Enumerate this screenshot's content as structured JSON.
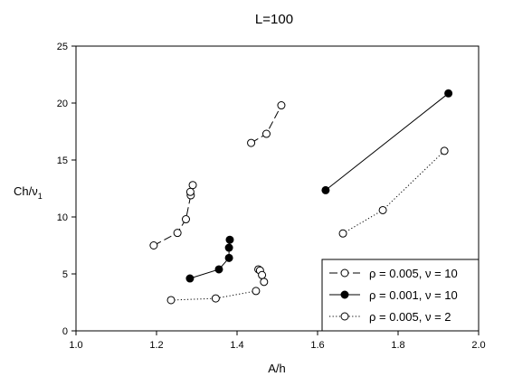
{
  "chart_data": {
    "type": "scatter",
    "title": "L=100",
    "xlabel": "A/h",
    "ylabel_main": "Ch/ν",
    "ylabel_sub": "1",
    "xlim": [
      1.0,
      2.0
    ],
    "ylim": [
      0,
      25
    ],
    "xticks": [
      1.0,
      1.2,
      1.4,
      1.6,
      1.8,
      2.0
    ],
    "xtick_labels": [
      "1.0",
      "1.2",
      "1.4",
      "1.6",
      "1.8",
      "2.0"
    ],
    "yticks": [
      0,
      5,
      10,
      15,
      20,
      25
    ],
    "ytick_labels": [
      "0",
      "5",
      "10",
      "15",
      "20",
      "25"
    ],
    "grid": false,
    "legend_position": "bottom-right",
    "series": [
      {
        "name": "ρ = 0.005, ν = 10",
        "marker": "open-circle",
        "line": "long-dash",
        "segments": [
          [
            [
              1.193,
              7.5
            ],
            [
              1.252,
              8.6
            ],
            [
              1.273,
              9.8
            ],
            [
              1.285,
              11.9
            ],
            [
              1.284,
              12.2
            ],
            [
              1.29,
              12.8
            ]
          ],
          [
            [
              1.435,
              16.5
            ],
            [
              1.473,
              17.3
            ],
            [
              1.51,
              19.8
            ]
          ],
          [
            [
              1.453,
              5.4
            ],
            [
              1.457,
              5.3
            ],
            [
              1.462,
              4.9
            ],
            [
              1.467,
              4.3
            ]
          ]
        ]
      },
      {
        "name": "ρ = 0.001, ν = 10",
        "marker": "filled-circle",
        "line": "solid",
        "segments": [
          [
            [
              1.283,
              4.6
            ],
            [
              1.355,
              5.4
            ],
            [
              1.38,
              6.4
            ],
            [
              1.38,
              7.3
            ],
            [
              1.382,
              8.0
            ]
          ],
          [
            [
              1.62,
              12.35
            ],
            [
              1.925,
              20.85
            ]
          ]
        ]
      },
      {
        "name": "ρ = 0.005, ν = 2",
        "marker": "open-circle",
        "line": "dotted",
        "segments": [
          [
            [
              1.236,
              2.7
            ],
            [
              1.347,
              2.85
            ],
            [
              1.447,
              3.5
            ]
          ],
          [
            [
              1.663,
              8.55
            ],
            [
              1.762,
              10.6
            ],
            [
              1.915,
              15.8
            ]
          ]
        ]
      }
    ]
  }
}
